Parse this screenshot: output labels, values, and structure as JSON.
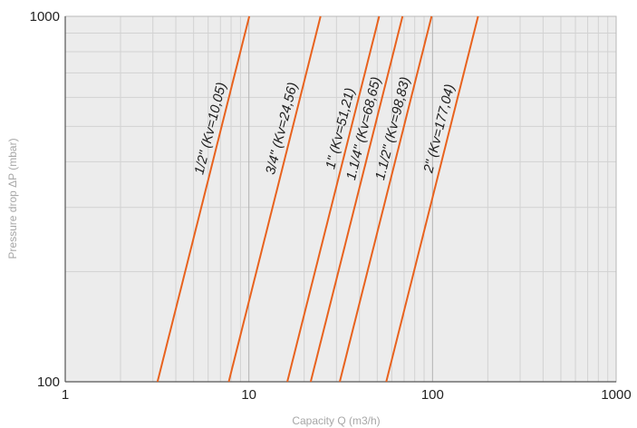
{
  "chart_data": {
    "type": "line",
    "title": "",
    "xlabel": "Capacity Q (m3/h)",
    "ylabel": "Pressure drop ΔP (mbar)",
    "x_scale": "log",
    "y_scale": "log",
    "xlim": [
      1,
      1000
    ],
    "ylim": [
      100,
      1000
    ],
    "x_ticks": [
      "1",
      "10",
      "100",
      "1000"
    ],
    "y_ticks": [
      "100",
      "1000"
    ],
    "grid": true,
    "legend": "none",
    "colors": {
      "series": "#e8621e",
      "plot_background": "#ececec",
      "grid_minor": "#d2d2d2",
      "grid_major": "#b3b3b3"
    },
    "series": [
      {
        "name": "1/2\" (Kv=10,05)",
        "kv": 10.05,
        "points": [
          {
            "x": 3.18,
            "y": 100
          },
          {
            "x": 10.05,
            "y": 1000
          }
        ]
      },
      {
        "name": "3/4\" (Kv=24,56)",
        "kv": 24.56,
        "points": [
          {
            "x": 7.77,
            "y": 100
          },
          {
            "x": 24.56,
            "y": 1000
          }
        ]
      },
      {
        "name": "1\" (Kv=51,21)",
        "kv": 51.21,
        "points": [
          {
            "x": 16.19,
            "y": 100
          },
          {
            "x": 51.21,
            "y": 1000
          }
        ]
      },
      {
        "name": "1.1/4\" (Kv=68,65)",
        "kv": 68.65,
        "points": [
          {
            "x": 21.71,
            "y": 100
          },
          {
            "x": 68.65,
            "y": 1000
          }
        ]
      },
      {
        "name": "1.1/2\" (Kv=98,83)",
        "kv": 98.83,
        "points": [
          {
            "x": 31.25,
            "y": 100
          },
          {
            "x": 98.83,
            "y": 1000
          }
        ]
      },
      {
        "name": "2\" (Kv=177,04)",
        "kv": 177.04,
        "points": [
          {
            "x": 55.98,
            "y": 100
          },
          {
            "x": 177.04,
            "y": 1000
          }
        ]
      }
    ]
  }
}
